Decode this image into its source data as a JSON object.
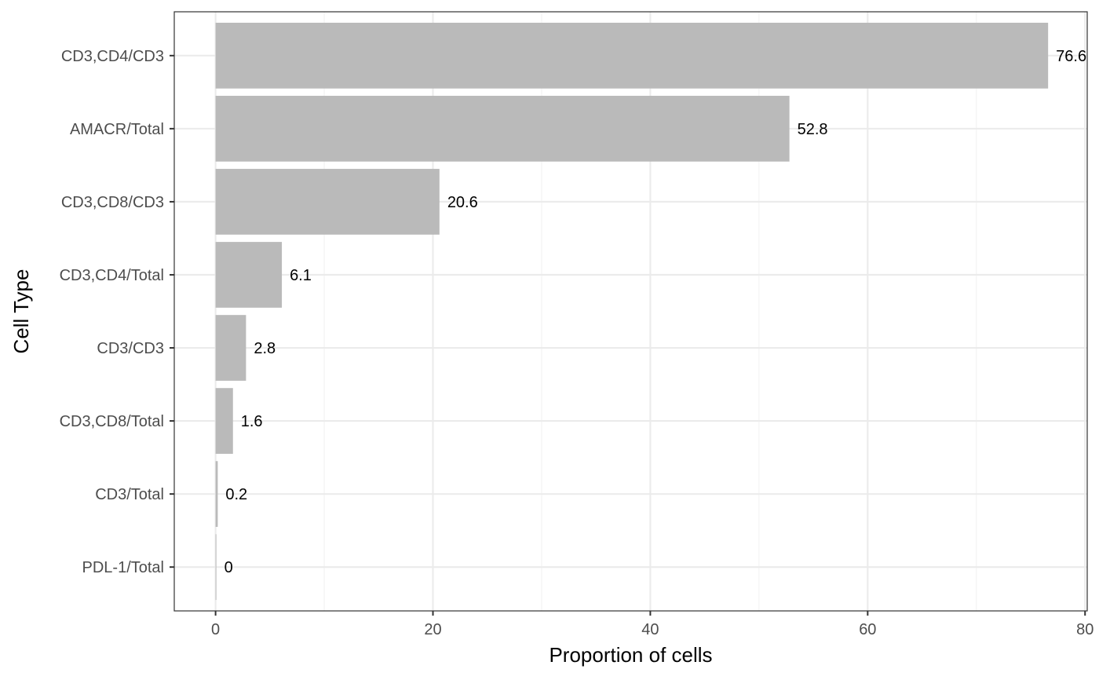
{
  "chart_data": {
    "type": "bar",
    "orientation": "horizontal",
    "categories": [
      "CD3,CD4/CD3",
      "AMACR/Total",
      "CD3,CD8/CD3",
      "CD3,CD4/Total",
      "CD3/CD3",
      "CD3,CD8/Total",
      "CD3/Total",
      "PDL-1/Total"
    ],
    "values": [
      76.6,
      52.8,
      20.6,
      6.1,
      2.8,
      1.6,
      0.2,
      0
    ],
    "data_labels": [
      "76.6",
      "52.8",
      "20.6",
      "6.1",
      "2.8",
      "1.6",
      "0.2",
      "0"
    ],
    "xlabel": "Proportion of cells",
    "ylabel": "Cell Type",
    "xlim": [
      -3.8,
      80.2
    ],
    "x_ticks": [
      0,
      20,
      40,
      60,
      80
    ],
    "x_tick_labels": [
      "0",
      "20",
      "40",
      "60",
      "80"
    ],
    "grid": true,
    "legend": "none",
    "colors": {
      "bar": "#bababa",
      "grid_major": "#ebebeb",
      "grid_minor": "#f2f2f2",
      "panel_border": "#333333",
      "background": "#ffffff"
    }
  }
}
